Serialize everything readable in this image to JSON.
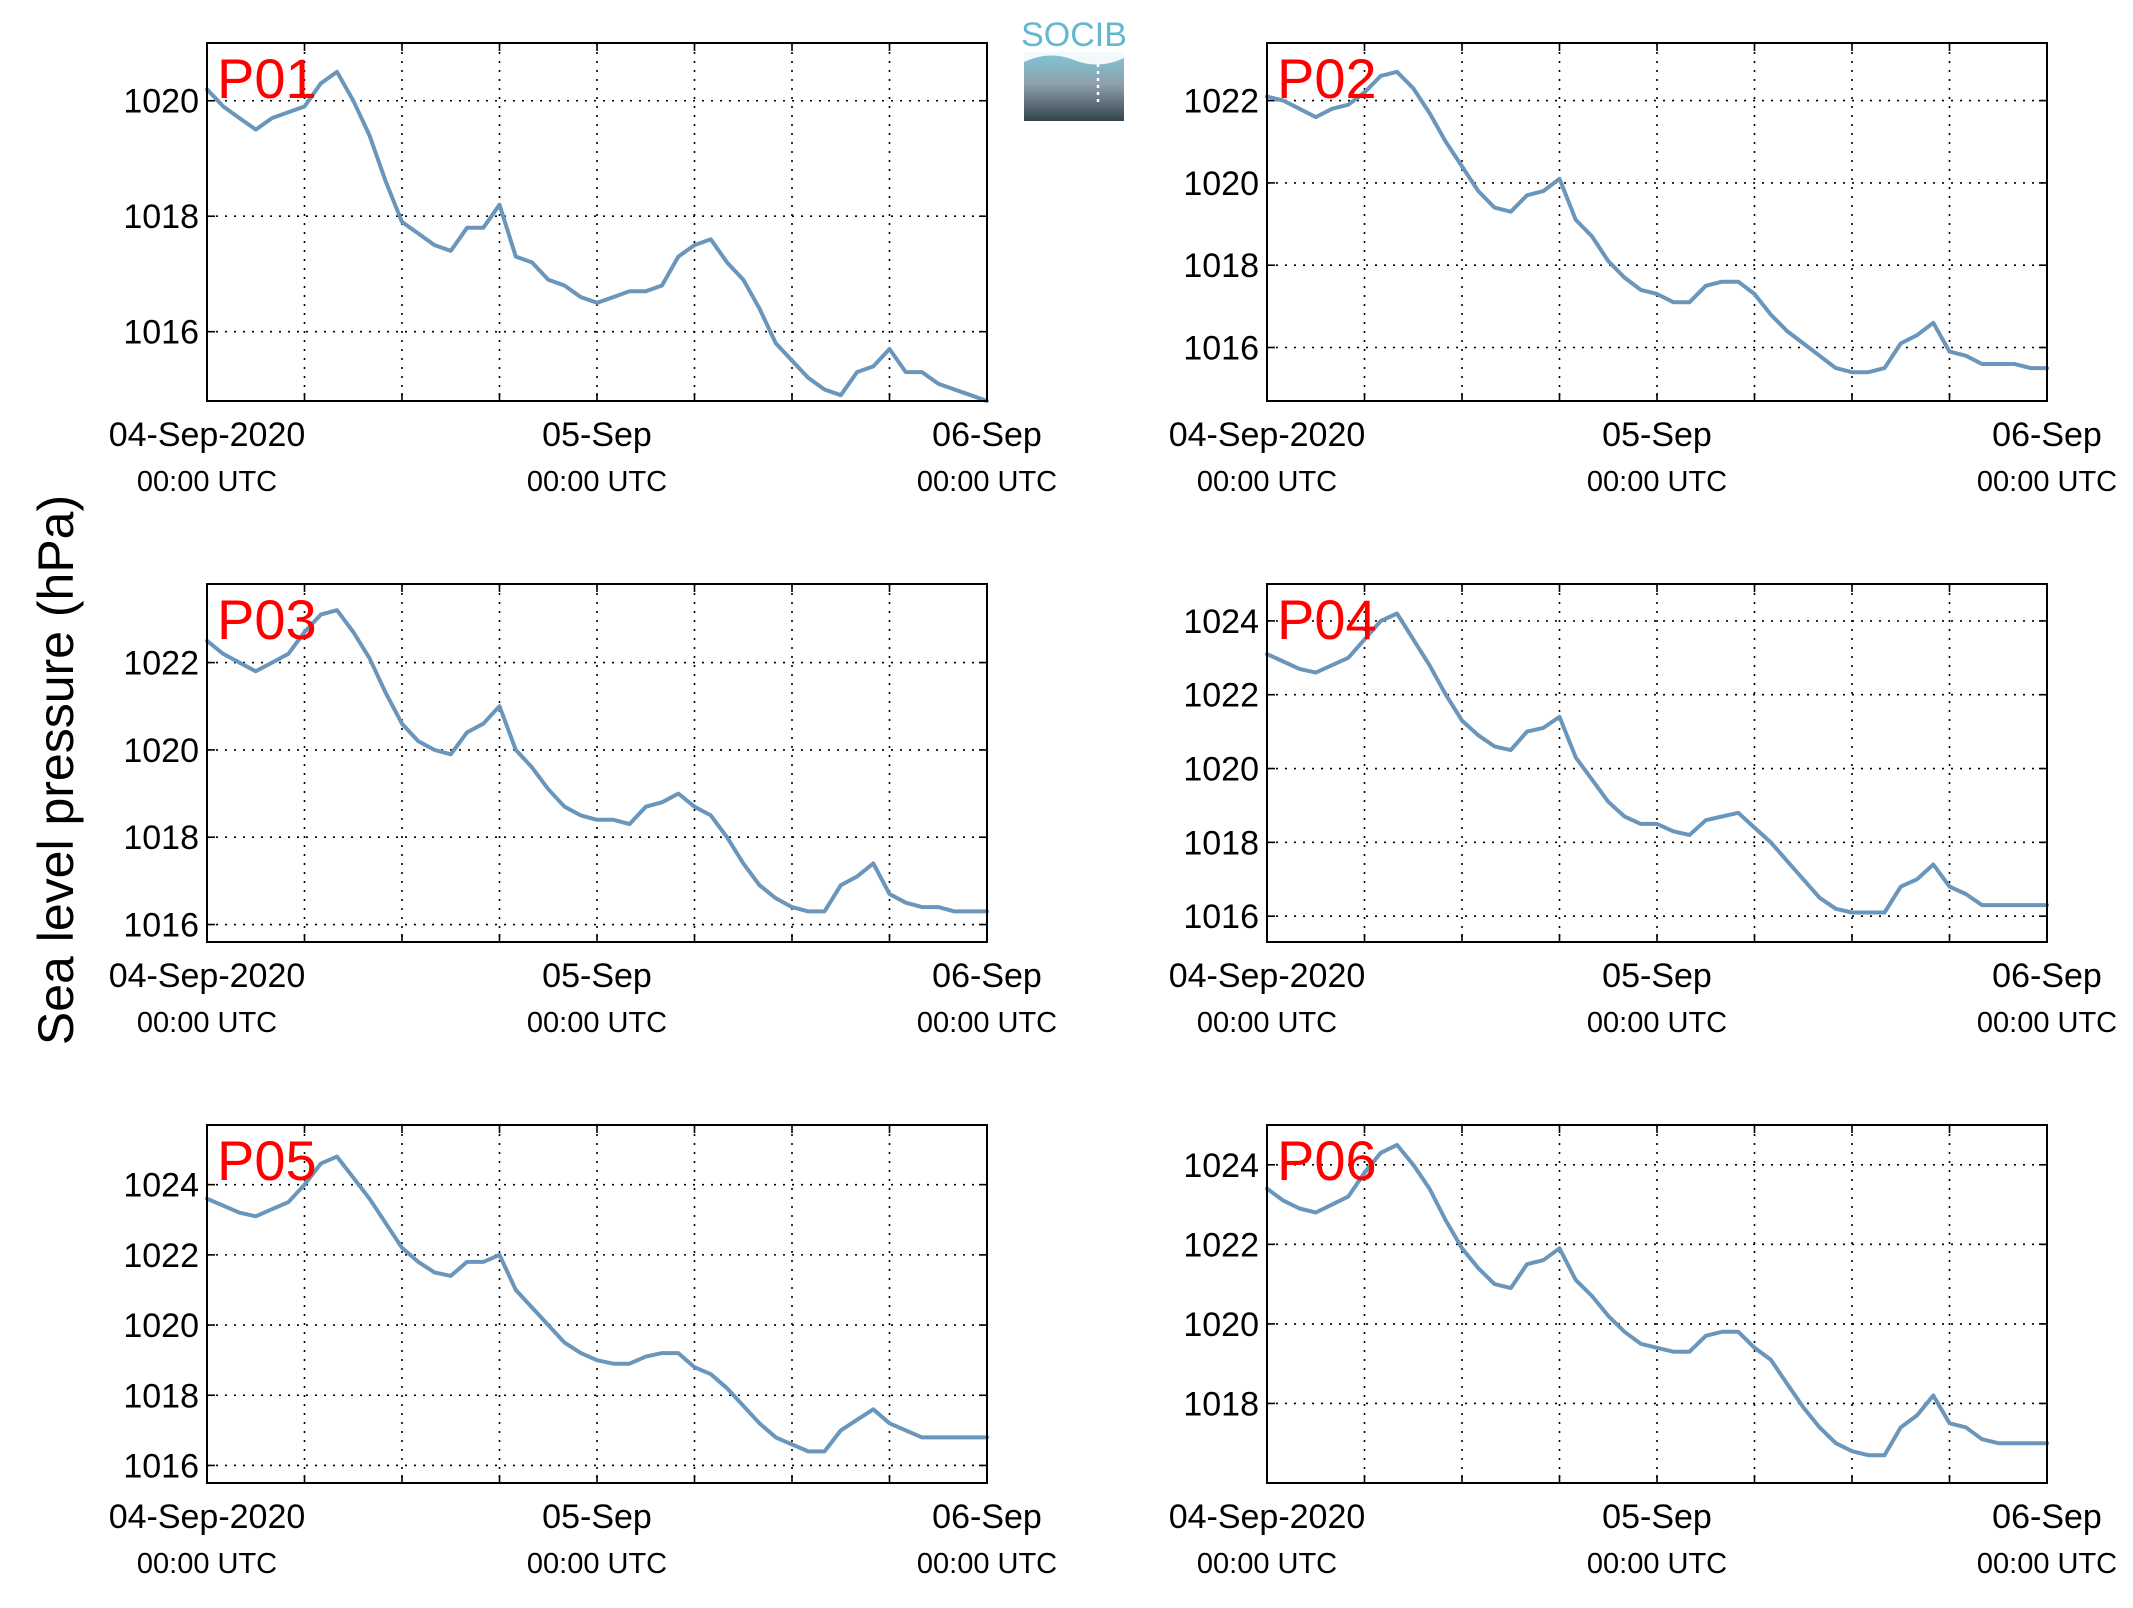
{
  "figure": {
    "ylabel": "Sea level pressure (hPa)",
    "logo_text": "SOCIB",
    "colors": {
      "line": "#6a96bb",
      "tag": "#ff0000",
      "axis": "#000000",
      "grid": "#000000"
    }
  },
  "chart_data": [
    {
      "type": "line",
      "name": "P01",
      "xlim": [
        0,
        48
      ],
      "xticks": [
        0,
        24,
        48
      ],
      "xtick_labels": [
        [
          "04-Sep-2020",
          "00:00 UTC"
        ],
        [
          "05-Sep",
          "00:00 UTC"
        ],
        [
          "06-Sep",
          "00:00 UTC"
        ]
      ],
      "ylim": [
        1014.8,
        1021.0
      ],
      "yticks": [
        1016,
        1018,
        1020
      ],
      "grid": true,
      "x": [
        0,
        1,
        2,
        3,
        4,
        5,
        6,
        7,
        8,
        9,
        10,
        11,
        12,
        13,
        14,
        15,
        16,
        17,
        18,
        19,
        20,
        21,
        22,
        23,
        24,
        25,
        26,
        27,
        28,
        29,
        30,
        31,
        32,
        33,
        34,
        35,
        36,
        37,
        38,
        39,
        40,
        41,
        42,
        43,
        44,
        45,
        46,
        47,
        48
      ],
      "y": [
        1020.2,
        1019.9,
        1019.7,
        1019.5,
        1019.7,
        1019.8,
        1019.9,
        1020.3,
        1020.5,
        1020.0,
        1019.4,
        1018.6,
        1017.9,
        1017.7,
        1017.5,
        1017.4,
        1017.8,
        1017.8,
        1018.2,
        1017.3,
        1017.2,
        1016.9,
        1016.8,
        1016.6,
        1016.5,
        1016.6,
        1016.7,
        1016.7,
        1016.8,
        1017.3,
        1017.5,
        1017.6,
        1017.2,
        1016.9,
        1016.4,
        1015.8,
        1015.5,
        1015.2,
        1015.0,
        1014.9,
        1015.3,
        1015.4,
        1015.7,
        1015.3,
        1015.3,
        1015.1,
        1015.0,
        1014.9,
        1014.8
      ]
    },
    {
      "type": "line",
      "name": "P02",
      "xlim": [
        0,
        48
      ],
      "xticks": [
        0,
        24,
        48
      ],
      "xtick_labels": [
        [
          "04-Sep-2020",
          "00:00 UTC"
        ],
        [
          "05-Sep",
          "00:00 UTC"
        ],
        [
          "06-Sep",
          "00:00 UTC"
        ]
      ],
      "ylim": [
        1014.7,
        1023.4
      ],
      "yticks": [
        1016,
        1018,
        1020,
        1022
      ],
      "grid": true,
      "x": [
        0,
        1,
        2,
        3,
        4,
        5,
        6,
        7,
        8,
        9,
        10,
        11,
        12,
        13,
        14,
        15,
        16,
        17,
        18,
        19,
        20,
        21,
        22,
        23,
        24,
        25,
        26,
        27,
        28,
        29,
        30,
        31,
        32,
        33,
        34,
        35,
        36,
        37,
        38,
        39,
        40,
        41,
        42,
        43,
        44,
        45,
        46,
        47,
        48
      ],
      "y": [
        1022.1,
        1022.0,
        1021.8,
        1021.6,
        1021.8,
        1021.9,
        1022.2,
        1022.6,
        1022.7,
        1022.3,
        1021.7,
        1021.0,
        1020.4,
        1019.8,
        1019.4,
        1019.3,
        1019.7,
        1019.8,
        1020.1,
        1019.1,
        1018.7,
        1018.1,
        1017.7,
        1017.4,
        1017.3,
        1017.1,
        1017.1,
        1017.5,
        1017.6,
        1017.6,
        1017.3,
        1016.8,
        1016.4,
        1016.1,
        1015.8,
        1015.5,
        1015.4,
        1015.4,
        1015.5,
        1016.1,
        1016.3,
        1016.6,
        1015.9,
        1015.8,
        1015.6,
        1015.6,
        1015.6,
        1015.5,
        1015.5
      ]
    },
    {
      "type": "line",
      "name": "P03",
      "xlim": [
        0,
        48
      ],
      "xticks": [
        0,
        24,
        48
      ],
      "xtick_labels": [
        [
          "04-Sep-2020",
          "00:00 UTC"
        ],
        [
          "05-Sep",
          "00:00 UTC"
        ],
        [
          "06-Sep",
          "00:00 UTC"
        ]
      ],
      "ylim": [
        1015.6,
        1023.8
      ],
      "yticks": [
        1016,
        1018,
        1020,
        1022
      ],
      "grid": true,
      "x": [
        0,
        1,
        2,
        3,
        4,
        5,
        6,
        7,
        8,
        9,
        10,
        11,
        12,
        13,
        14,
        15,
        16,
        17,
        18,
        19,
        20,
        21,
        22,
        23,
        24,
        25,
        26,
        27,
        28,
        29,
        30,
        31,
        32,
        33,
        34,
        35,
        36,
        37,
        38,
        39,
        40,
        41,
        42,
        43,
        44,
        45,
        46,
        47,
        48
      ],
      "y": [
        1022.5,
        1022.2,
        1022.0,
        1021.8,
        1022.0,
        1022.2,
        1022.7,
        1023.1,
        1023.2,
        1022.7,
        1022.1,
        1021.3,
        1020.6,
        1020.2,
        1020.0,
        1019.9,
        1020.4,
        1020.6,
        1021.0,
        1020.0,
        1019.6,
        1019.1,
        1018.7,
        1018.5,
        1018.4,
        1018.4,
        1018.3,
        1018.7,
        1018.8,
        1019.0,
        1018.7,
        1018.5,
        1018.0,
        1017.4,
        1016.9,
        1016.6,
        1016.4,
        1016.3,
        1016.3,
        1016.9,
        1017.1,
        1017.4,
        1016.7,
        1016.5,
        1016.4,
        1016.4,
        1016.3,
        1016.3,
        1016.3
      ]
    },
    {
      "type": "line",
      "name": "P04",
      "xlim": [
        0,
        48
      ],
      "xticks": [
        0,
        24,
        48
      ],
      "xtick_labels": [
        [
          "04-Sep-2020",
          "00:00 UTC"
        ],
        [
          "05-Sep",
          "00:00 UTC"
        ],
        [
          "06-Sep",
          "00:00 UTC"
        ]
      ],
      "ylim": [
        1015.3,
        1025.0
      ],
      "yticks": [
        1016,
        1018,
        1020,
        1022,
        1024
      ],
      "grid": true,
      "x": [
        0,
        1,
        2,
        3,
        4,
        5,
        6,
        7,
        8,
        9,
        10,
        11,
        12,
        13,
        14,
        15,
        16,
        17,
        18,
        19,
        20,
        21,
        22,
        23,
        24,
        25,
        26,
        27,
        28,
        29,
        30,
        31,
        32,
        33,
        34,
        35,
        36,
        37,
        38,
        39,
        40,
        41,
        42,
        43,
        44,
        45,
        46,
        47,
        48
      ],
      "y": [
        1023.1,
        1022.9,
        1022.7,
        1022.6,
        1022.8,
        1023.0,
        1023.5,
        1024.0,
        1024.2,
        1023.5,
        1022.8,
        1022.0,
        1021.3,
        1020.9,
        1020.6,
        1020.5,
        1021.0,
        1021.1,
        1021.4,
        1020.3,
        1019.7,
        1019.1,
        1018.7,
        1018.5,
        1018.5,
        1018.3,
        1018.2,
        1018.6,
        1018.7,
        1018.8,
        1018.4,
        1018.0,
        1017.5,
        1017.0,
        1016.5,
        1016.2,
        1016.1,
        1016.1,
        1016.1,
        1016.8,
        1017.0,
        1017.4,
        1016.8,
        1016.6,
        1016.3,
        1016.3,
        1016.3,
        1016.3,
        1016.3
      ]
    },
    {
      "type": "line",
      "name": "P05",
      "xlim": [
        0,
        48
      ],
      "xticks": [
        0,
        24,
        48
      ],
      "xtick_labels": [
        [
          "04-Sep-2020",
          "00:00 UTC"
        ],
        [
          "05-Sep",
          "00:00 UTC"
        ],
        [
          "06-Sep",
          "00:00 UTC"
        ]
      ],
      "ylim": [
        1015.5,
        1025.7
      ],
      "yticks": [
        1016,
        1018,
        1020,
        1022,
        1024
      ],
      "grid": true,
      "x": [
        0,
        1,
        2,
        3,
        4,
        5,
        6,
        7,
        8,
        9,
        10,
        11,
        12,
        13,
        14,
        15,
        16,
        17,
        18,
        19,
        20,
        21,
        22,
        23,
        24,
        25,
        26,
        27,
        28,
        29,
        30,
        31,
        32,
        33,
        34,
        35,
        36,
        37,
        38,
        39,
        40,
        41,
        42,
        43,
        44,
        45,
        46,
        47,
        48
      ],
      "y": [
        1023.6,
        1023.4,
        1023.2,
        1023.1,
        1023.3,
        1023.5,
        1024.0,
        1024.6,
        1024.8,
        1024.2,
        1023.6,
        1022.9,
        1022.2,
        1021.8,
        1021.5,
        1021.4,
        1021.8,
        1021.8,
        1022.0,
        1021.0,
        1020.5,
        1020.0,
        1019.5,
        1019.2,
        1019.0,
        1018.9,
        1018.9,
        1019.1,
        1019.2,
        1019.2,
        1018.8,
        1018.6,
        1018.2,
        1017.7,
        1017.2,
        1016.8,
        1016.6,
        1016.4,
        1016.4,
        1017.0,
        1017.3,
        1017.6,
        1017.2,
        1017.0,
        1016.8,
        1016.8,
        1016.8,
        1016.8,
        1016.8
      ]
    },
    {
      "type": "line",
      "name": "P06",
      "xlim": [
        0,
        48
      ],
      "xticks": [
        0,
        24,
        48
      ],
      "xtick_labels": [
        [
          "04-Sep-2020",
          "00:00 UTC"
        ],
        [
          "05-Sep",
          "00:00 UTC"
        ],
        [
          "06-Sep",
          "00:00 UTC"
        ]
      ],
      "ylim": [
        1016.0,
        1025.0
      ],
      "yticks": [
        1018,
        1020,
        1022,
        1024
      ],
      "grid": true,
      "x": [
        0,
        1,
        2,
        3,
        4,
        5,
        6,
        7,
        8,
        9,
        10,
        11,
        12,
        13,
        14,
        15,
        16,
        17,
        18,
        19,
        20,
        21,
        22,
        23,
        24,
        25,
        26,
        27,
        28,
        29,
        30,
        31,
        32,
        33,
        34,
        35,
        36,
        37,
        38,
        39,
        40,
        41,
        42,
        43,
        44,
        45,
        46,
        47,
        48
      ],
      "y": [
        1023.4,
        1023.1,
        1022.9,
        1022.8,
        1023.0,
        1023.2,
        1023.8,
        1024.3,
        1024.5,
        1024.0,
        1023.4,
        1022.6,
        1021.9,
        1021.4,
        1021.0,
        1020.9,
        1021.5,
        1021.6,
        1021.9,
        1021.1,
        1020.7,
        1020.2,
        1019.8,
        1019.5,
        1019.4,
        1019.3,
        1019.3,
        1019.7,
        1019.8,
        1019.8,
        1019.4,
        1019.1,
        1018.5,
        1017.9,
        1017.4,
        1017.0,
        1016.8,
        1016.7,
        1016.7,
        1017.4,
        1017.7,
        1018.2,
        1017.5,
        1017.4,
        1017.1,
        1017.0,
        1017.0,
        1017.0,
        1017.0
      ]
    }
  ]
}
